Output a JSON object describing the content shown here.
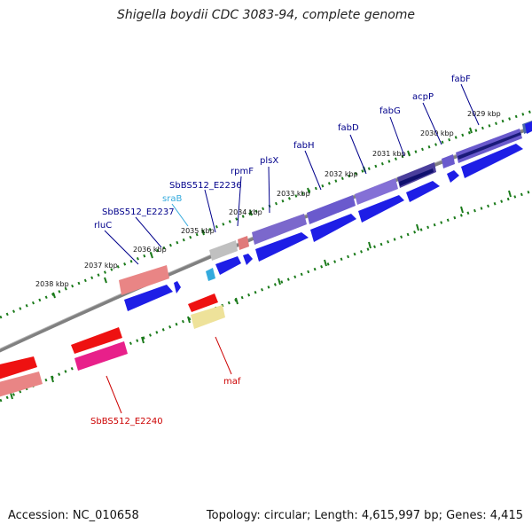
{
  "title": "Shigella boydii CDC 3083-94, complete genome",
  "accession": "Accession: NC_010658",
  "summary": "Topology: circular; Length: 4,615,997 bp; Genes: 4,415",
  "colors": {
    "label_top": "#00008b",
    "label_rna": "#33aadd",
    "label_bottom": "#cc0000",
    "backbone": "#808080",
    "tick": "#1a7a1a"
  },
  "ticks": [
    "2029 kbp",
    "2030 kbp",
    "2031 kbp",
    "2032 kbp",
    "2033 kbp",
    "2034 kbp",
    "2035 kbp",
    "2036 kbp",
    "2037 kbp",
    "2038 kbp"
  ],
  "top_labels": [
    "fabF",
    "acpP",
    "fabG",
    "fabD",
    "fabH",
    "plsX",
    "rpmF",
    "SbBS512_E2236",
    "sraB",
    "SbBS512_E2237",
    "rluC"
  ],
  "bottom_labels": [
    "maf",
    "SbBS512_E2240"
  ]
}
